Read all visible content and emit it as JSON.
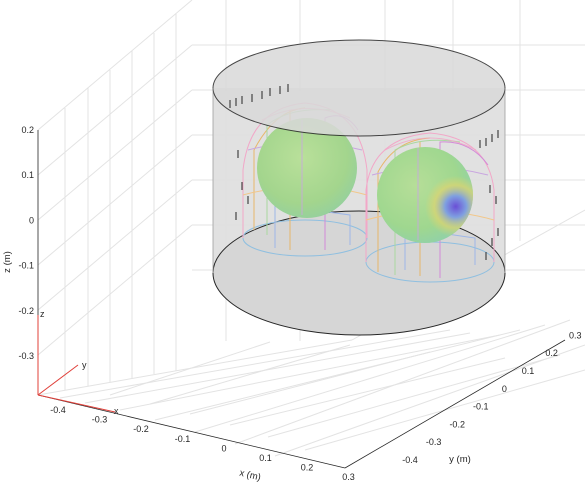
{
  "chart_data": {
    "type": "3d-scene",
    "title": "",
    "xlabel": "x (m)",
    "ylabel": "y (m)",
    "zlabel": "z (m)",
    "xlim": [
      -0.5,
      0.3
    ],
    "ylim": [
      -0.5,
      0.3
    ],
    "zlim": [
      -0.4,
      0.2
    ],
    "x_ticks": [
      "-0.4",
      "-0.3",
      "-0.2",
      "-0.1",
      "0",
      "0.1",
      "0.2",
      "0.3"
    ],
    "y_ticks": [
      "-0.4",
      "-0.3",
      "-0.2",
      "-0.1",
      "0",
      "0.1",
      "0.2",
      "0.3"
    ],
    "z_ticks": [
      "-0.3",
      "-0.2",
      "-0.1",
      "0",
      "0.1",
      "0.2"
    ],
    "grid": true,
    "triad_labels": [
      "x",
      "y",
      "z"
    ],
    "colors": {
      "cylinder_fill": "#d9d9d9",
      "sphere_base": "#a8d88e",
      "sphere_highlight": "#7b5bd6",
      "triad": "#e0403a",
      "grid": "#e6e6e6"
    }
  }
}
